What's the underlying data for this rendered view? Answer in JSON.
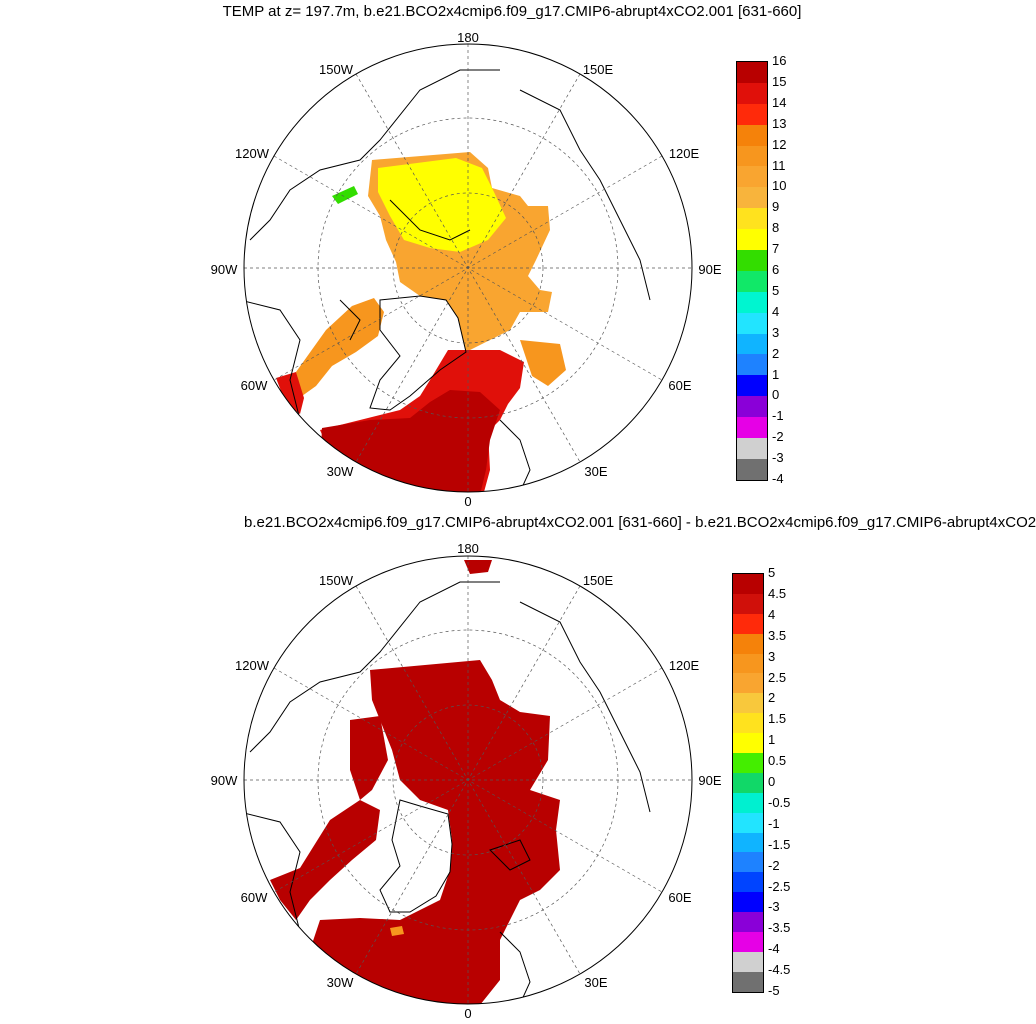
{
  "panel_top": {
    "title": "TEMP at z= 197.7m, b.e21.BCO2x4cmip6.f09_g17.CMIP6-abrupt4xCO2.001 [631-660]",
    "colorbar_ticks": [
      "16",
      "15",
      "14",
      "13",
      "12",
      "11",
      "10",
      "9",
      "8",
      "7",
      "6",
      "5",
      "4",
      "3",
      "2",
      "1",
      "0",
      "-1",
      "-2",
      "-3",
      "-4"
    ],
    "colorbar_colors": [
      "#b80000",
      "#e0100a",
      "#ff2a0a",
      "#f5820a",
      "#f7961e",
      "#f9a530",
      "#f8b43c",
      "#ffe21e",
      "#ffff00",
      "#33dd00",
      "#11e868",
      "#00f5d0",
      "#22e4ff",
      "#10b4ff",
      "#1e82ff",
      "#0000ff",
      "#8a00d8",
      "#e600e6",
      "#d0d0d0",
      "#707070"
    ]
  },
  "panel_bottom": {
    "title": "b.e21.BCO2x4cmip6.f09_g17.CMIP6-abrupt4xCO2.001 [631-660] - b.e21.BCO2x4cmip6.f09_g17.CMIP6-abrupt4xCO2",
    "colorbar_ticks": [
      "5",
      "4.5",
      "4",
      "3.5",
      "3",
      "2.5",
      "2",
      "1.5",
      "1",
      "0.5",
      "0",
      "-0.5",
      "-1",
      "-1.5",
      "-2",
      "-2.5",
      "-3",
      "-3.5",
      "-4",
      "-4.5",
      "-5"
    ],
    "colorbar_colors": [
      "#b80000",
      "#d0100a",
      "#ff2a0a",
      "#f5820a",
      "#f7961e",
      "#f9a530",
      "#f8c83c",
      "#ffe21e",
      "#ffff00",
      "#44ee00",
      "#11d868",
      "#00f0d0",
      "#22e4ff",
      "#10b4ff",
      "#1e82ff",
      "#0044ff",
      "#0000ff",
      "#8a00d8",
      "#e600e6",
      "#d0d0d0",
      "#707070"
    ]
  },
  "map_labels": {
    "lon_top": "180",
    "lon_bottom": "0",
    "lon_150w": "150W",
    "lon_150e": "150E",
    "lon_120w": "120W",
    "lon_120e": "120E",
    "lon_90w": "90W",
    "lon_90e": "90E",
    "lon_60w": "60W",
    "lon_60e": "60E",
    "lon_30w": "30W",
    "lon_30e": "30E"
  },
  "colors": {
    "warm_dark": "#b80000",
    "warm_red": "#e0100a",
    "orange": "#f7961e",
    "light_orange": "#f9a530",
    "yellow": "#ffff00",
    "green": "#33dd00",
    "cyan": "#22e4ff"
  }
}
